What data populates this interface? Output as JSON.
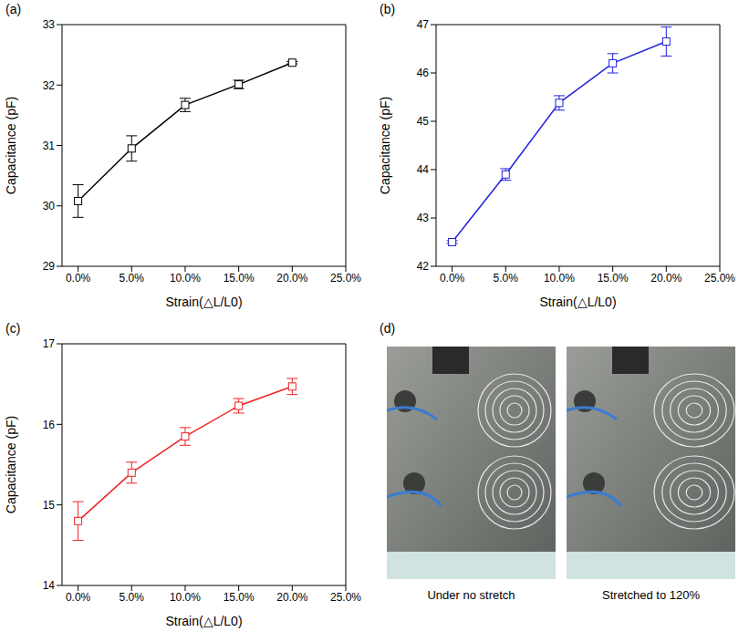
{
  "chart_data": [
    {
      "panel": "(a)",
      "type": "line",
      "x_label": "Strain(△L/L0)",
      "y_label": "Capacitance (pF)",
      "x": [
        0,
        5,
        10,
        15,
        20
      ],
      "values": [
        30.08,
        30.95,
        31.67,
        32.01,
        32.37
      ],
      "errors": [
        0.27,
        0.21,
        0.11,
        0.07,
        0.02
      ],
      "color": "#000000",
      "marker": "square",
      "xlim": [
        -1.5,
        25
      ],
      "xticks": [
        {
          "value": 0,
          "label": "0.0%"
        },
        {
          "value": 5,
          "label": "5.0%"
        },
        {
          "value": 10,
          "label": "10.0%"
        },
        {
          "value": 15,
          "label": "15.0%"
        },
        {
          "value": 20,
          "label": "20.0%"
        },
        {
          "value": 25,
          "label": "25.0%"
        }
      ],
      "ylim": [
        29,
        33
      ],
      "yticks": [
        29,
        30,
        31,
        32,
        33
      ]
    },
    {
      "panel": "(b)",
      "type": "line",
      "x_label": "Strain(△L/L0)",
      "y_label": "Capacitance (pF)",
      "x": [
        0,
        5,
        10,
        15,
        20
      ],
      "values": [
        42.5,
        43.9,
        45.38,
        46.2,
        46.65
      ],
      "errors": [
        0.03,
        0.12,
        0.15,
        0.2,
        0.3
      ],
      "color": "#2222dd",
      "marker": "square",
      "xlim": [
        -1.5,
        25
      ],
      "xticks": [
        {
          "value": 0,
          "label": "0.0%"
        },
        {
          "value": 5,
          "label": "5.0%"
        },
        {
          "value": 10,
          "label": "10.0%"
        },
        {
          "value": 15,
          "label": "15.0%"
        },
        {
          "value": 20,
          "label": "20.0%"
        },
        {
          "value": 25,
          "label": "25.0%"
        }
      ],
      "ylim": [
        42,
        47
      ],
      "yticks": [
        42,
        43,
        44,
        45,
        46,
        47
      ]
    },
    {
      "panel": "(c)",
      "type": "line",
      "x_label": "Strain(△L/L0)",
      "y_label": "Capacitance (pF)",
      "x": [
        0,
        5,
        10,
        15,
        20
      ],
      "values": [
        14.8,
        15.4,
        15.85,
        16.23,
        16.47
      ],
      "errors": [
        0.24,
        0.13,
        0.11,
        0.09,
        0.1
      ],
      "color": "#ee2222",
      "marker": "square",
      "xlim": [
        -1.5,
        25
      ],
      "xticks": [
        {
          "value": 0,
          "label": "0.0%"
        },
        {
          "value": 5,
          "label": "5.0%"
        },
        {
          "value": 10,
          "label": "10.0%"
        },
        {
          "value": 15,
          "label": "15.0%"
        },
        {
          "value": 20,
          "label": "20.0%"
        },
        {
          "value": 25,
          "label": "25.0%"
        }
      ],
      "ylim": [
        14,
        17
      ],
      "yticks": [
        14,
        15,
        16,
        17
      ]
    }
  ],
  "photo": {
    "panel": "(d)",
    "captions": [
      "Under no stretch",
      "Stretched to 120%"
    ]
  }
}
